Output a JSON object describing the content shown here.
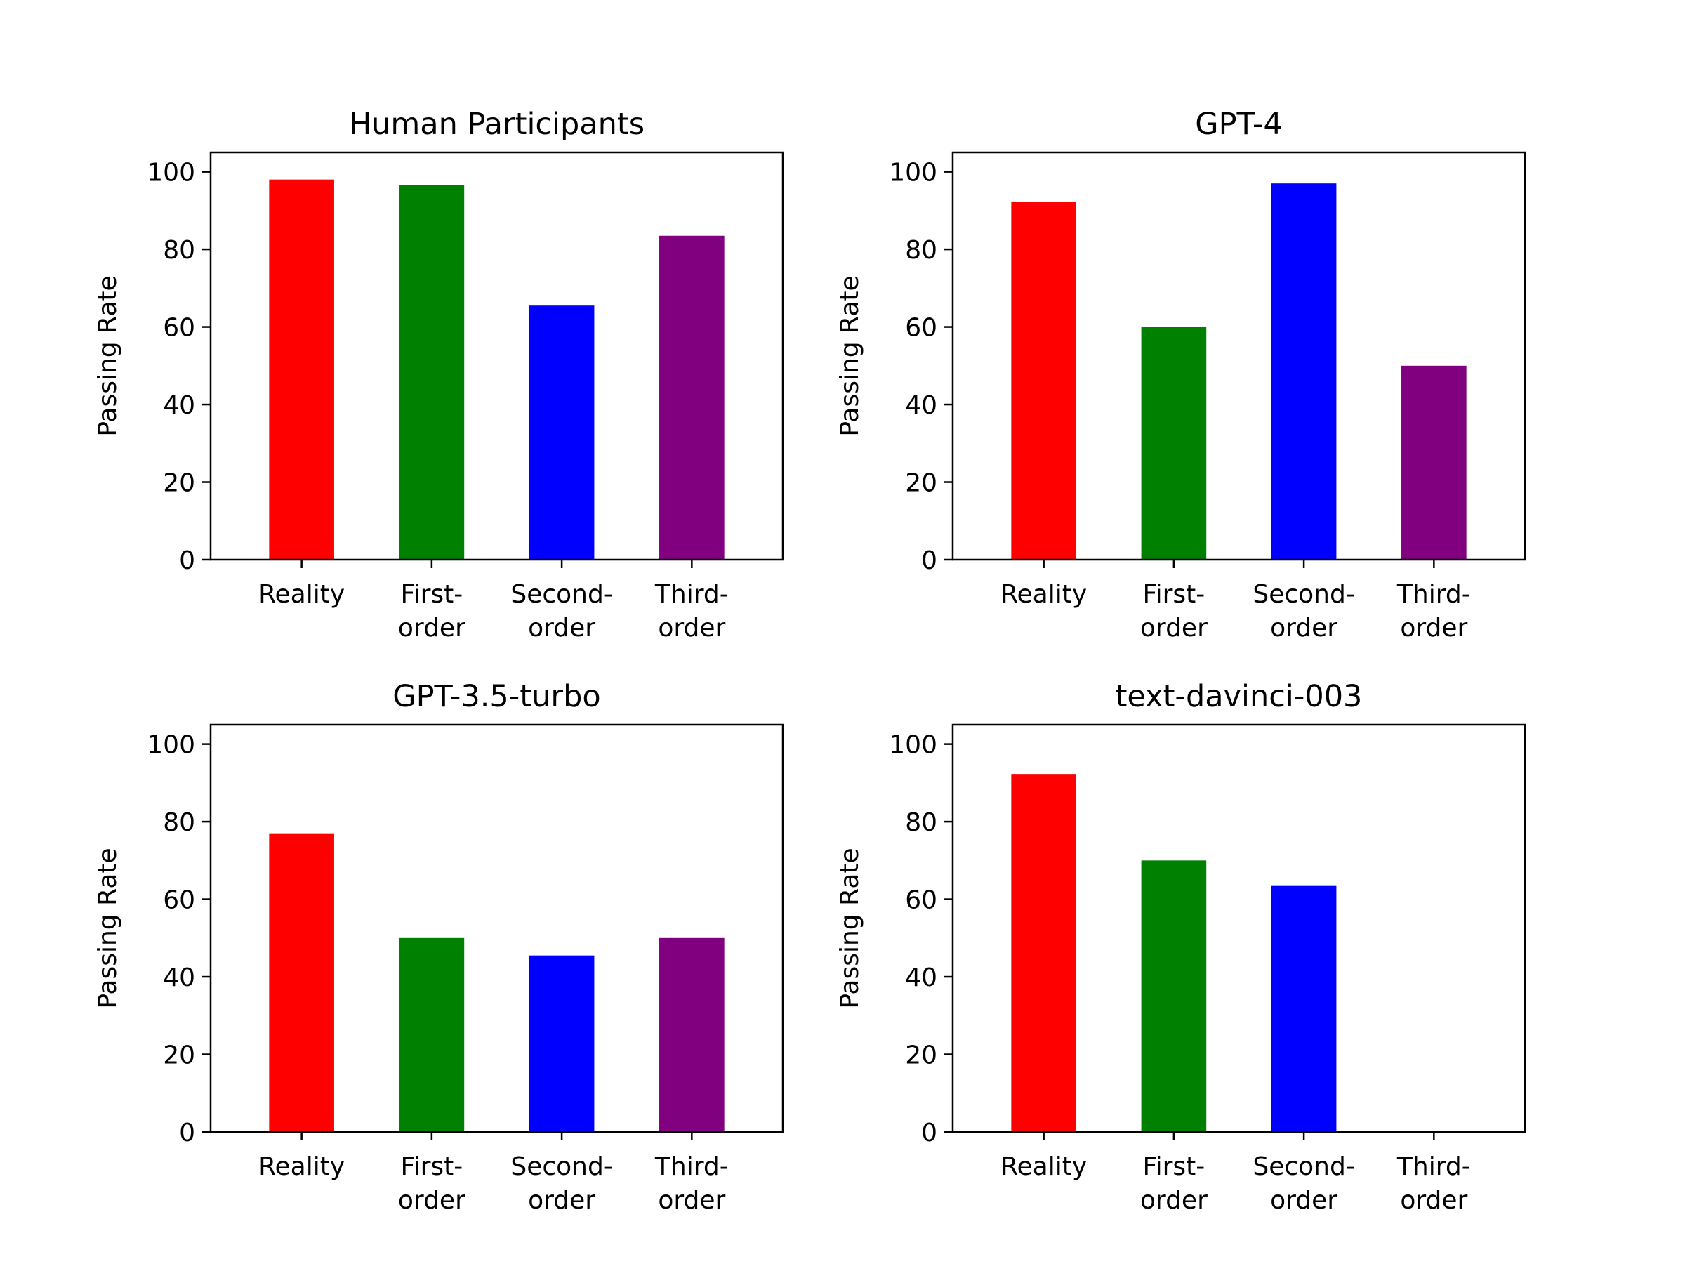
{
  "chart_data": [
    {
      "type": "bar",
      "title": "Human Participants",
      "ylabel": "Passing Rate",
      "xlabel": "",
      "ylim": [
        0,
        105
      ],
      "yticks": [
        0,
        20,
        40,
        60,
        80,
        100
      ],
      "categories": [
        [
          "Reality"
        ],
        [
          "First-",
          "order"
        ],
        [
          "Second-",
          "order"
        ],
        [
          "Third-",
          "order"
        ]
      ],
      "values": [
        98,
        96.5,
        65.5,
        83.5
      ],
      "colors": [
        "#ff0000",
        "#008000",
        "#0000ff",
        "#800080"
      ]
    },
    {
      "type": "bar",
      "title": "GPT-4",
      "ylabel": "Passing Rate",
      "xlabel": "",
      "ylim": [
        0,
        105
      ],
      "yticks": [
        0,
        20,
        40,
        60,
        80,
        100
      ],
      "categories": [
        [
          "Reality"
        ],
        [
          "First-",
          "order"
        ],
        [
          "Second-",
          "order"
        ],
        [
          "Third-",
          "order"
        ]
      ],
      "values": [
        92.3,
        60,
        97,
        50
      ],
      "colors": [
        "#ff0000",
        "#008000",
        "#0000ff",
        "#800080"
      ]
    },
    {
      "type": "bar",
      "title": "GPT-3.5-turbo",
      "ylabel": "Passing Rate",
      "xlabel": "",
      "ylim": [
        0,
        105
      ],
      "yticks": [
        0,
        20,
        40,
        60,
        80,
        100
      ],
      "categories": [
        [
          "Reality"
        ],
        [
          "First-",
          "order"
        ],
        [
          "Second-",
          "order"
        ],
        [
          "Third-",
          "order"
        ]
      ],
      "values": [
        77,
        50,
        45.5,
        50
      ],
      "colors": [
        "#ff0000",
        "#008000",
        "#0000ff",
        "#800080"
      ]
    },
    {
      "type": "bar",
      "title": "text-davinci-003",
      "ylabel": "Passing Rate",
      "xlabel": "",
      "ylim": [
        0,
        105
      ],
      "yticks": [
        0,
        20,
        40,
        60,
        80,
        100
      ],
      "categories": [
        [
          "Reality"
        ],
        [
          "First-",
          "order"
        ],
        [
          "Second-",
          "order"
        ],
        [
          "Third-",
          "order"
        ]
      ],
      "values": [
        92.3,
        70,
        63.6,
        0
      ],
      "colors": [
        "#ff0000",
        "#008000",
        "#0000ff",
        "#800080"
      ]
    }
  ]
}
